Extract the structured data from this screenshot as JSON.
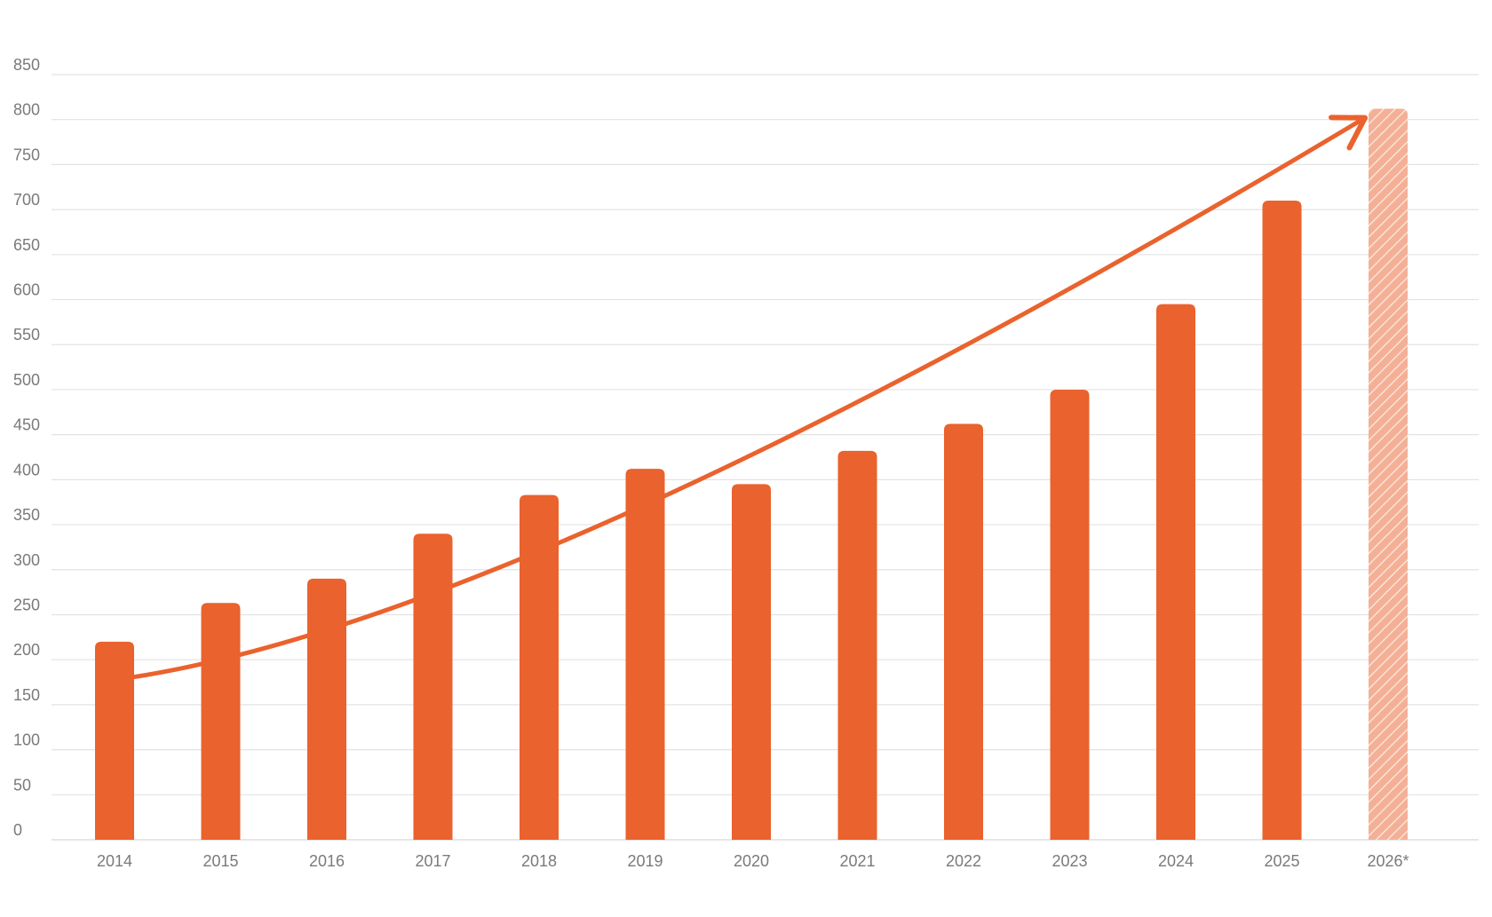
{
  "chart_data": {
    "type": "bar",
    "categories": [
      "2014",
      "2015",
      "2016",
      "2017",
      "2018",
      "2019",
      "2020",
      "2021",
      "2022",
      "2023",
      "2024",
      "2025",
      "2026*"
    ],
    "values": [
      220,
      263,
      290,
      340,
      383,
      412,
      395,
      432,
      462,
      500,
      595,
      710,
      812
    ],
    "projected": [
      false,
      false,
      false,
      false,
      false,
      false,
      false,
      false,
      false,
      false,
      false,
      false,
      true
    ],
    "ylim": [
      0,
      850
    ],
    "yticks": [
      0,
      50,
      100,
      150,
      200,
      250,
      300,
      350,
      400,
      450,
      500,
      550,
      600,
      650,
      700,
      750,
      800,
      850
    ],
    "grid": true,
    "title": "",
    "xlabel": "",
    "ylabel": "",
    "trend_arrow": {
      "points": [
        {
          "category": "2014",
          "value": 181
        },
        {
          "category": "2019",
          "value": 372
        },
        {
          "category": "2026*",
          "value": 802
        }
      ]
    },
    "colors": {
      "bar": "#ea622d",
      "projected_bar": "#f3a98c",
      "trend": "#ea622d"
    }
  }
}
